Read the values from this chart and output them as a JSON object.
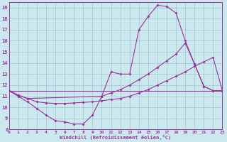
{
  "xlabel": "Windchill (Refroidissement éolien,°C)",
  "bg_color": "#cce8ef",
  "line_color": "#993399",
  "grid_color": "#99bbcc",
  "xlim": [
    0,
    23
  ],
  "ylim": [
    8,
    19.5
  ],
  "yticks": [
    8,
    9,
    10,
    11,
    12,
    13,
    14,
    15,
    16,
    17,
    18,
    19
  ],
  "xticks": [
    0,
    1,
    2,
    3,
    4,
    5,
    6,
    7,
    8,
    9,
    10,
    11,
    12,
    13,
    14,
    15,
    16,
    17,
    18,
    19,
    20,
    21,
    22,
    23
  ],
  "curve1_x": [
    0,
    1,
    2,
    3,
    4,
    5,
    6,
    7,
    8,
    9,
    10,
    11,
    12,
    13,
    14,
    15,
    16,
    17,
    18,
    19,
    20,
    21,
    22,
    23
  ],
  "curve1_y": [
    11.5,
    11.0,
    10.5,
    9.9,
    9.3,
    8.8,
    8.7,
    8.5,
    8.5,
    9.3,
    11.0,
    13.2,
    13.0,
    13.0,
    17.0,
    18.2,
    19.2,
    19.1,
    18.5,
    16.0,
    13.9,
    11.9,
    11.5,
    11.5
  ],
  "curve2_x": [
    0,
    23
  ],
  "curve2_y": [
    11.5,
    11.5
  ],
  "curve3_x": [
    0,
    1,
    2,
    3,
    4,
    5,
    6,
    7,
    8,
    9,
    10,
    11,
    12,
    13,
    14,
    15,
    16,
    17,
    18,
    19,
    20,
    21,
    22,
    23
  ],
  "curve3_y": [
    11.5,
    11.1,
    10.8,
    10.5,
    10.4,
    10.35,
    10.35,
    10.4,
    10.45,
    10.5,
    10.6,
    10.7,
    10.8,
    11.0,
    11.3,
    11.6,
    12.0,
    12.4,
    12.8,
    13.2,
    13.7,
    14.1,
    14.5,
    11.5
  ],
  "curve4_x": [
    0,
    1,
    2,
    10,
    11,
    12,
    13,
    14,
    15,
    16,
    17,
    18,
    19,
    20,
    21,
    22,
    23
  ],
  "curve4_y": [
    11.5,
    11.1,
    10.8,
    11.0,
    11.3,
    11.6,
    12.0,
    12.5,
    13.0,
    13.6,
    14.2,
    14.8,
    15.8,
    13.9,
    11.9,
    11.5,
    11.5
  ]
}
